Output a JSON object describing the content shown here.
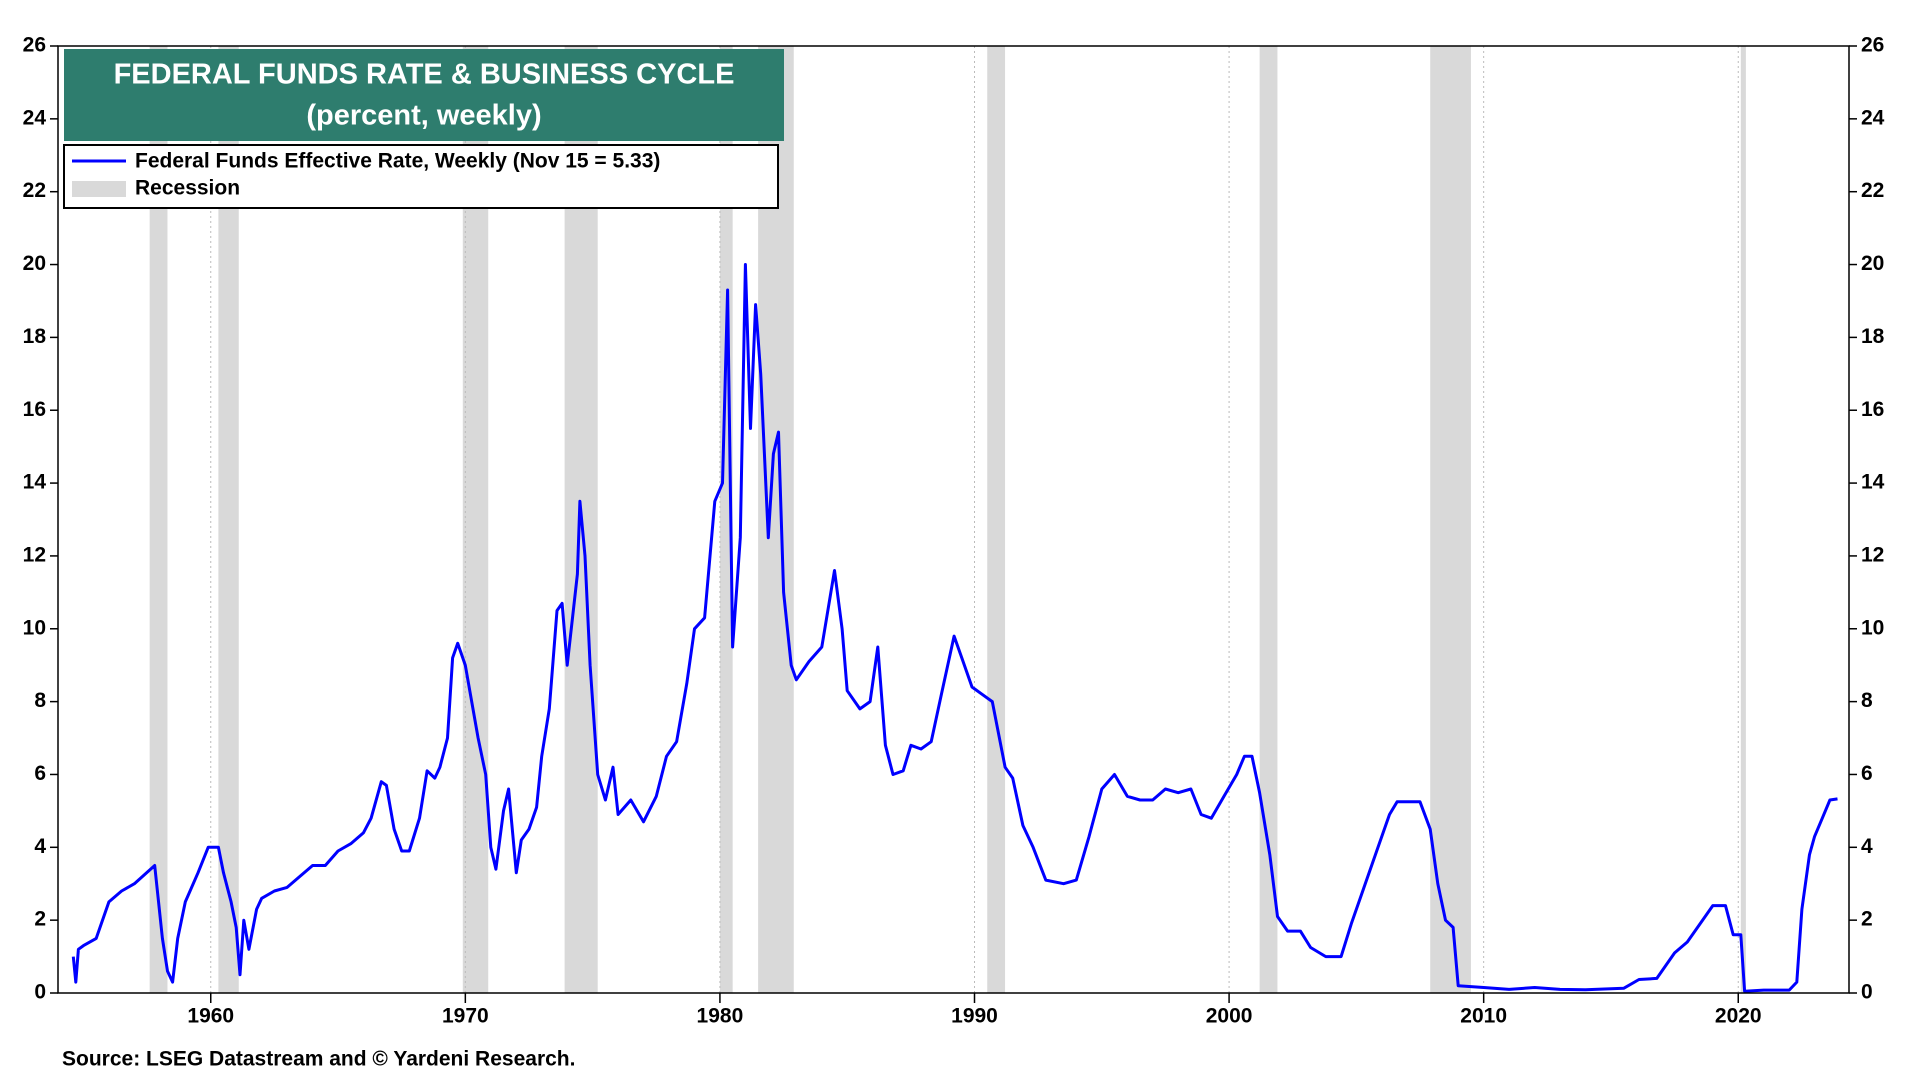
{
  "chart_data": {
    "type": "line",
    "title": "FEDERAL FUNDS RATE & BUSINESS CYCLE",
    "subtitle": "(percent, weekly)",
    "source": "Source: LSEG Datastream and © Yardeni Research.",
    "x": [
      1954.6,
      1954.7,
      1954.8,
      1955,
      1955.5,
      1956,
      1956.5,
      1957,
      1957.8,
      1958.1,
      1958.3,
      1958.5,
      1958.7,
      1959,
      1959.5,
      1959.9,
      1960.3,
      1960.5,
      1960.8,
      1961,
      1961.15,
      1961.3,
      1961.5,
      1961.8,
      1962,
      1962.5,
      1963,
      1963.5,
      1964,
      1964.5,
      1965,
      1965.5,
      1966,
      1966.3,
      1966.7,
      1966.9,
      1967.2,
      1967.5,
      1967.8,
      1968.2,
      1968.5,
      1968.8,
      1969,
      1969.3,
      1969.5,
      1969.7,
      1970,
      1970.2,
      1970.5,
      1970.8,
      1971,
      1971.2,
      1971.5,
      1971.7,
      1972,
      1972.2,
      1972.5,
      1972.8,
      1973,
      1973.3,
      1973.6,
      1973.8,
      1974,
      1974.4,
      1974.5,
      1974.7,
      1974.9,
      1975.2,
      1975.5,
      1975.8,
      1976,
      1976.5,
      1977,
      1977.5,
      1977.9,
      1978.3,
      1978.7,
      1979,
      1979.4,
      1979.8,
      1980.1,
      1980.3,
      1980.5,
      1980.8,
      1981,
      1981.2,
      1981.4,
      1981.6,
      1981.9,
      1982.1,
      1982.3,
      1982.5,
      1982.8,
      1983,
      1983.5,
      1984,
      1984.5,
      1984.8,
      1985,
      1985.5,
      1985.9,
      1986.2,
      1986.5,
      1986.8,
      1987.2,
      1987.5,
      1987.9,
      1988.3,
      1988.7,
      1989.2,
      1989.5,
      1989.9,
      1990.3,
      1990.7,
      1991.2,
      1991.5,
      1991.9,
      1992.3,
      1992.8,
      1993.5,
      1994,
      1994.5,
      1995,
      1995.5,
      1996,
      1996.5,
      1997,
      1997.5,
      1998,
      1998.5,
      1998.9,
      1999.3,
      1999.8,
      2000.3,
      2000.6,
      2000.9,
      2001.2,
      2001.6,
      2001.9,
      2002.3,
      2002.8,
      2003.2,
      2003.8,
      2004.4,
      2004.8,
      2005.3,
      2005.8,
      2006.3,
      2006.6,
      2007.5,
      2007.9,
      2008.2,
      2008.5,
      2008.8,
      2009,
      2010,
      2011,
      2012,
      2013,
      2014,
      2015.5,
      2016.1,
      2016.8,
      2017.5,
      2018,
      2018.5,
      2019,
      2019.5,
      2019.8,
      2020.1,
      2020.25,
      2021,
      2022,
      2022.3,
      2022.5,
      2022.8,
      2023,
      2023.3,
      2023.6,
      2023.9
    ],
    "series": [
      {
        "name": "Federal Funds Effective Rate, Weekly (Nov 15 = 5.33)",
        "color": "#0000ff",
        "values": [
          1.0,
          0.3,
          1.2,
          1.3,
          1.5,
          2.5,
          2.8,
          3.0,
          3.5,
          1.5,
          0.6,
          0.3,
          1.5,
          2.5,
          3.3,
          4.0,
          4.0,
          3.3,
          2.5,
          1.8,
          0.5,
          2.0,
          1.2,
          2.3,
          2.6,
          2.8,
          2.9,
          3.2,
          3.5,
          3.5,
          3.9,
          4.1,
          4.4,
          4.8,
          5.8,
          5.7,
          4.5,
          3.9,
          3.9,
          4.8,
          6.1,
          5.9,
          6.2,
          7.0,
          9.2,
          9.6,
          9.0,
          8.2,
          7.0,
          6.0,
          4.0,
          3.4,
          5.0,
          5.6,
          3.3,
          4.2,
          4.5,
          5.1,
          6.5,
          7.8,
          10.5,
          10.7,
          9.0,
          11.5,
          13.5,
          12.0,
          9.0,
          6.0,
          5.3,
          6.2,
          4.9,
          5.3,
          4.7,
          5.4,
          6.5,
          6.9,
          8.5,
          10.0,
          10.3,
          13.5,
          14.0,
          19.3,
          9.5,
          12.5,
          20.0,
          15.5,
          18.9,
          17.0,
          12.5,
          14.8,
          15.4,
          11.0,
          9.0,
          8.6,
          9.1,
          9.5,
          11.6,
          10.0,
          8.3,
          7.8,
          8.0,
          9.5,
          6.8,
          6.0,
          6.1,
          6.8,
          6.7,
          6.9,
          8.2,
          9.8,
          9.2,
          8.4,
          8.2,
          8.0,
          6.2,
          5.9,
          4.6,
          4.0,
          3.1,
          3.0,
          3.1,
          4.3,
          5.6,
          6.0,
          5.4,
          5.3,
          5.3,
          5.6,
          5.5,
          5.6,
          4.9,
          4.8,
          5.4,
          6.0,
          6.5,
          6.5,
          5.5,
          3.8,
          2.1,
          1.7,
          1.7,
          1.25,
          1.0,
          1.0,
          1.9,
          2.9,
          3.9,
          4.9,
          5.25,
          5.25,
          4.5,
          3.0,
          2.0,
          1.8,
          0.2,
          0.15,
          0.1,
          0.15,
          0.1,
          0.09,
          0.13,
          0.37,
          0.4,
          1.1,
          1.4,
          1.9,
          2.4,
          2.4,
          1.6,
          1.6,
          0.05,
          0.08,
          0.08,
          0.3,
          2.3,
          3.8,
          4.3,
          4.8,
          5.3,
          5.33
        ]
      }
    ],
    "recession": {
      "name": "Recession",
      "color": "#d9d9d9",
      "periods": [
        [
          1957.6,
          1958.3
        ],
        [
          1960.3,
          1961.1
        ],
        [
          1969.9,
          1970.9
        ],
        [
          1973.9,
          1975.2
        ],
        [
          1980.0,
          1980.5
        ],
        [
          1981.5,
          1982.9
        ],
        [
          1990.5,
          1991.2
        ],
        [
          2001.2,
          2001.9
        ],
        [
          2007.9,
          2009.5
        ],
        [
          2020.1,
          2020.3
        ]
      ]
    },
    "xlim": [
      1954,
      2024.35
    ],
    "xticks": [
      1960,
      1970,
      1980,
      1990,
      2000,
      2010,
      2020
    ],
    "ylim": [
      0,
      26
    ],
    "yticks": [
      0,
      2,
      4,
      6,
      8,
      10,
      12,
      14,
      16,
      18,
      20,
      22,
      24,
      26
    ],
    "y2lim": [
      0,
      26
    ],
    "y2ticks": [
      0,
      2,
      4,
      6,
      8,
      10,
      12,
      14,
      16,
      18,
      20,
      22,
      24,
      26
    ],
    "grid": true
  }
}
